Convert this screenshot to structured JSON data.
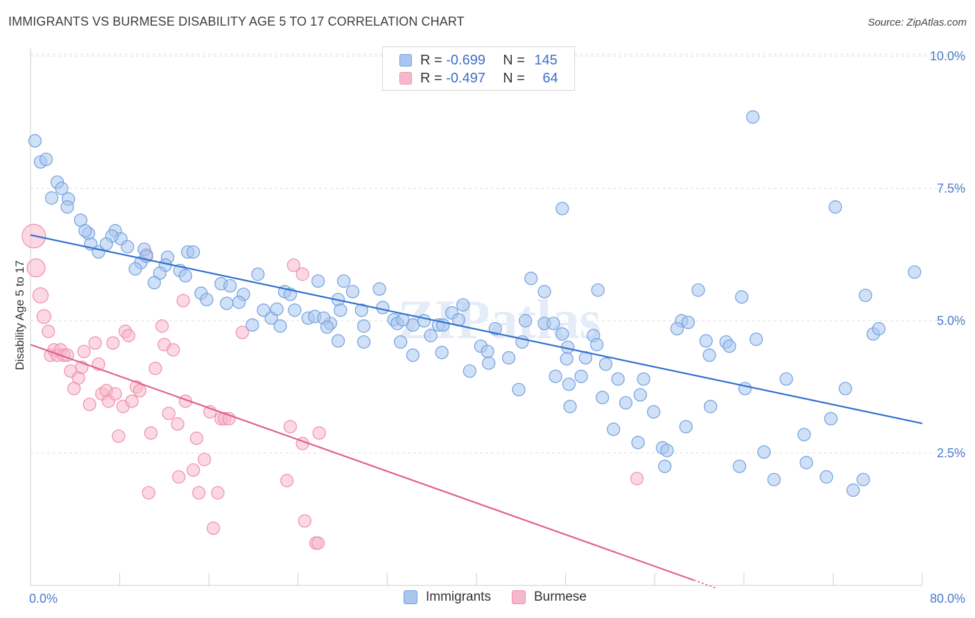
{
  "title": "IMMIGRANTS VS BURMESE DISABILITY AGE 5 TO 17 CORRELATION CHART",
  "source": "Source: ZipAtlas.com",
  "watermark": "ZIPatlas",
  "legend": {
    "rows": [
      {
        "r_label": "R = ",
        "r_value": "-0.699",
        "n_label": "N = ",
        "n_value": "145"
      },
      {
        "r_label": "R = ",
        "r_value": "-0.497",
        "n_label": "N = ",
        "n_value": "64"
      }
    ]
  },
  "bottom_legend": [
    "Immigrants",
    "Burmese"
  ],
  "colors": {
    "immigrants_fill": "#a9c6ee",
    "immigrants_stroke": "#6f9fe0",
    "immigrants_line": "#2f6fd0",
    "burmese_fill": "#f7b8cb",
    "burmese_stroke": "#ee8eac",
    "burmese_line": "#e0608c",
    "tick_text": "#4a7cc9",
    "grid": "#dddddd"
  },
  "chart_data": {
    "type": "scatter",
    "title": "IMMIGRANTS VS BURMESE DISABILITY AGE 5 TO 17 CORRELATION CHART",
    "xlabel": "",
    "ylabel": "Disability Age 5 to 17",
    "xlim": [
      0,
      80
    ],
    "ylim": [
      0,
      10.5
    ],
    "x_tick_labels": [
      "0.0%",
      "80.0%"
    ],
    "y_ticks": [
      2.5,
      5.0,
      7.5,
      10.0
    ],
    "y_tick_labels": [
      "2.5%",
      "5.0%",
      "7.5%",
      "10.0%"
    ],
    "grid": true,
    "series": [
      {
        "name": "Immigrants",
        "r": -0.699,
        "n": 145,
        "trend": {
          "x1": 0,
          "y1": 6.62,
          "x2": 80,
          "y2": 3.06
        },
        "points": [
          [
            0.4,
            8.4
          ],
          [
            0.9,
            8.0
          ],
          [
            1.4,
            8.05
          ],
          [
            2.4,
            7.62
          ],
          [
            2.8,
            7.5
          ],
          [
            1.9,
            7.32
          ],
          [
            3.4,
            7.3
          ],
          [
            3.3,
            7.15
          ],
          [
            4.5,
            6.9
          ],
          [
            5.2,
            6.65
          ],
          [
            4.9,
            6.7
          ],
          [
            7.6,
            6.7
          ],
          [
            8.1,
            6.55
          ],
          [
            7.3,
            6.6
          ],
          [
            5.4,
            6.45
          ],
          [
            6.1,
            6.3
          ],
          [
            6.8,
            6.45
          ],
          [
            8.7,
            6.4
          ],
          [
            10.2,
            6.35
          ],
          [
            14.1,
            6.3
          ],
          [
            14.6,
            6.3
          ],
          [
            9.9,
            6.1
          ],
          [
            10.4,
            6.22
          ],
          [
            9.4,
            5.98
          ],
          [
            12.3,
            6.2
          ],
          [
            12.1,
            6.05
          ],
          [
            11.6,
            5.9
          ],
          [
            13.4,
            5.95
          ],
          [
            13.9,
            5.85
          ],
          [
            11.1,
            5.72
          ],
          [
            17.1,
            5.7
          ],
          [
            17.9,
            5.66
          ],
          [
            19.1,
            5.5
          ],
          [
            20.4,
            5.88
          ],
          [
            22.8,
            5.55
          ],
          [
            23.3,
            5.5
          ],
          [
            25.8,
            5.75
          ],
          [
            28.1,
            5.75
          ],
          [
            28.9,
            5.55
          ],
          [
            31.3,
            5.6
          ],
          [
            15.3,
            5.52
          ],
          [
            15.8,
            5.4
          ],
          [
            17.6,
            5.33
          ],
          [
            18.7,
            5.35
          ],
          [
            20.9,
            5.2
          ],
          [
            21.6,
            5.05
          ],
          [
            22.1,
            5.22
          ],
          [
            23.7,
            5.2
          ],
          [
            24.9,
            5.05
          ],
          [
            25.5,
            5.08
          ],
          [
            26.9,
            4.95
          ],
          [
            26.3,
            5.05
          ],
          [
            27.6,
            5.4
          ],
          [
            27.8,
            5.2
          ],
          [
            29.7,
            5.2
          ],
          [
            31.6,
            5.25
          ],
          [
            32.6,
            5.02
          ],
          [
            32.9,
            4.95
          ],
          [
            34.3,
            4.92
          ],
          [
            35.3,
            5.0
          ],
          [
            36.6,
            4.92
          ],
          [
            37.8,
            5.15
          ],
          [
            38.4,
            5.02
          ],
          [
            38.8,
            5.3
          ],
          [
            19.9,
            4.92
          ],
          [
            22.4,
            4.9
          ],
          [
            26.6,
            4.88
          ],
          [
            29.9,
            4.9
          ],
          [
            33.4,
            5.02
          ],
          [
            37.0,
            4.92
          ],
          [
            41.7,
            4.85
          ],
          [
            44.1,
            4.6
          ],
          [
            44.4,
            5.0
          ],
          [
            46.1,
            4.95
          ],
          [
            47.7,
            4.75
          ],
          [
            48.2,
            4.5
          ],
          [
            44.9,
            5.8
          ],
          [
            46.1,
            5.55
          ],
          [
            43.8,
            3.7
          ],
          [
            27.6,
            4.62
          ],
          [
            29.9,
            4.6
          ],
          [
            33.2,
            4.6
          ],
          [
            35.9,
            4.72
          ],
          [
            36.9,
            4.4
          ],
          [
            34.3,
            4.35
          ],
          [
            40.4,
            4.52
          ],
          [
            41.0,
            4.42
          ],
          [
            42.9,
            4.3
          ],
          [
            41.1,
            4.2
          ],
          [
            39.4,
            4.05
          ],
          [
            46.9,
            4.95
          ],
          [
            47.1,
            3.95
          ],
          [
            49.4,
            3.95
          ],
          [
            48.3,
            3.8
          ],
          [
            48.1,
            4.28
          ],
          [
            49.8,
            4.3
          ],
          [
            50.5,
            4.72
          ],
          [
            50.8,
            4.55
          ],
          [
            50.9,
            5.58
          ],
          [
            51.6,
            4.18
          ],
          [
            52.7,
            3.9
          ],
          [
            48.4,
            3.38
          ],
          [
            51.3,
            3.55
          ],
          [
            53.4,
            3.45
          ],
          [
            54.7,
            3.6
          ],
          [
            55.0,
            3.9
          ],
          [
            52.3,
            2.95
          ],
          [
            54.5,
            2.7
          ],
          [
            56.7,
            2.6
          ],
          [
            57.1,
            2.55
          ],
          [
            55.9,
            3.28
          ],
          [
            56.9,
            2.25
          ],
          [
            58.8,
            3.0
          ],
          [
            58.4,
            5.0
          ],
          [
            58.0,
            4.85
          ],
          [
            59.0,
            4.97
          ],
          [
            59.9,
            5.58
          ],
          [
            60.6,
            4.62
          ],
          [
            60.9,
            4.35
          ],
          [
            61.0,
            3.38
          ],
          [
            62.4,
            4.6
          ],
          [
            62.7,
            4.52
          ],
          [
            63.8,
            5.45
          ],
          [
            64.1,
            3.72
          ],
          [
            63.6,
            2.25
          ],
          [
            65.1,
            4.65
          ],
          [
            65.8,
            2.52
          ],
          [
            67.8,
            3.9
          ],
          [
            66.7,
            2.0
          ],
          [
            69.4,
            2.85
          ],
          [
            69.6,
            2.32
          ],
          [
            71.4,
            2.05
          ],
          [
            71.8,
            3.15
          ],
          [
            72.2,
            7.15
          ],
          [
            73.1,
            3.72
          ],
          [
            73.8,
            1.8
          ],
          [
            74.7,
            2.0
          ],
          [
            74.9,
            5.48
          ],
          [
            75.6,
            4.75
          ],
          [
            76.1,
            4.85
          ],
          [
            79.3,
            5.92
          ],
          [
            64.8,
            8.85
          ],
          [
            47.7,
            7.12
          ]
        ]
      },
      {
        "name": "Burmese",
        "r": -0.497,
        "n": 64,
        "trend": {
          "x1": 0,
          "y1": 4.55,
          "x2": 59.5,
          "y2": 0.1
        },
        "points": [
          [
            0.3,
            6.6
          ],
          [
            0.5,
            6.0
          ],
          [
            0.9,
            5.48
          ],
          [
            1.2,
            5.08
          ],
          [
            1.6,
            4.8
          ],
          [
            1.8,
            4.35
          ],
          [
            2.1,
            4.45
          ],
          [
            2.4,
            4.35
          ],
          [
            2.7,
            4.45
          ],
          [
            3.0,
            4.35
          ],
          [
            3.3,
            4.35
          ],
          [
            3.6,
            4.05
          ],
          [
            3.9,
            3.72
          ],
          [
            4.3,
            3.92
          ],
          [
            4.6,
            4.12
          ],
          [
            4.8,
            4.42
          ],
          [
            5.3,
            3.42
          ],
          [
            5.8,
            4.58
          ],
          [
            6.1,
            4.18
          ],
          [
            6.4,
            3.62
          ],
          [
            6.8,
            3.68
          ],
          [
            7.0,
            3.48
          ],
          [
            7.4,
            4.58
          ],
          [
            7.6,
            3.62
          ],
          [
            7.9,
            2.82
          ],
          [
            8.3,
            3.38
          ],
          [
            8.5,
            4.8
          ],
          [
            8.8,
            4.72
          ],
          [
            9.1,
            3.48
          ],
          [
            9.5,
            3.75
          ],
          [
            9.8,
            3.68
          ],
          [
            10.4,
            6.25
          ],
          [
            10.6,
            1.75
          ],
          [
            10.8,
            2.88
          ],
          [
            11.2,
            4.1
          ],
          [
            11.8,
            4.9
          ],
          [
            12.0,
            4.55
          ],
          [
            12.4,
            3.25
          ],
          [
            12.8,
            4.45
          ],
          [
            13.2,
            3.05
          ],
          [
            13.3,
            2.05
          ],
          [
            13.7,
            5.38
          ],
          [
            13.9,
            3.48
          ],
          [
            14.6,
            2.18
          ],
          [
            14.9,
            2.78
          ],
          [
            15.1,
            1.75
          ],
          [
            15.6,
            2.38
          ],
          [
            16.1,
            3.28
          ],
          [
            16.4,
            1.08
          ],
          [
            16.8,
            1.75
          ],
          [
            17.1,
            3.15
          ],
          [
            17.4,
            3.15
          ],
          [
            17.8,
            3.15
          ],
          [
            19.0,
            4.78
          ],
          [
            23.0,
            1.98
          ],
          [
            23.3,
            3.0
          ],
          [
            23.6,
            6.05
          ],
          [
            24.4,
            5.88
          ],
          [
            24.6,
            1.22
          ],
          [
            25.6,
            0.8
          ],
          [
            25.8,
            0.8
          ],
          [
            25.9,
            2.88
          ],
          [
            24.4,
            2.68
          ],
          [
            54.4,
            2.02
          ]
        ]
      }
    ]
  }
}
